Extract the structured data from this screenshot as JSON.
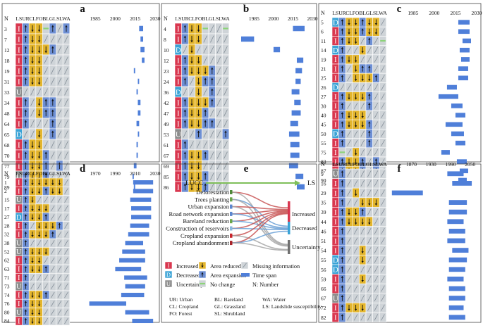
{
  "columns": [
    "LS",
    "UR",
    "CL",
    "FO",
    "BL",
    "GL",
    "SL",
    "WA"
  ],
  "legend_codes": {
    "I": "Increased",
    "D": "Decreased",
    "U": "Uncertainty",
    "R": "Area reduced",
    "E": "Area expansion",
    "N": "No change",
    "M": "Missing information",
    "T": "Time span",
    "num": "N: Number"
  },
  "abbreviations": [
    "UR: Urban",
    "BL: Bareland",
    "WA: Water",
    "CL: Cropland",
    "GL: Grassland",
    "LS: Landslide susceptibility",
    "FO: Forest",
    "SL: Shrubland"
  ],
  "colors": {
    "I": "#d9374f",
    "D": "#3aa3d6",
    "U": "#8c8c8c",
    "R": "#e3b52c",
    "E": "#6d8fd4",
    "M": "#cfd4d8",
    "N": "#8dd37a",
    "bar": "#4f7fd9"
  },
  "panels": [
    {
      "label": "a",
      "year_ticks": [
        1985,
        2000,
        2015,
        2030
      ],
      "time_range": [
        1970,
        2030
      ],
      "rows": [
        {
          "n": "3",
          "cells": "IERRNEME",
          "span": [
            2018,
            2021
          ]
        },
        {
          "n": "7",
          "cells": "IERRMMMM",
          "span": [
            2019,
            2021
          ]
        },
        {
          "n": "12",
          "cells": "IERRREMM",
          "span": [
            2019,
            2022
          ]
        },
        {
          "n": "18",
          "cells": "IERRMMMM",
          "span": [
            2020,
            2022
          ]
        },
        {
          "n": "19",
          "cells": "IERRMMMM",
          "span": [
            2014,
            2015
          ]
        },
        {
          "n": "31",
          "cells": "IERRMMMM",
          "span": [
            2017,
            2018
          ]
        },
        {
          "n": "33",
          "cells": "UMMMMMMM",
          "span": [
            2016,
            2017
          ]
        },
        {
          "n": "34",
          "cells": "IEMREEMM",
          "span": [
            2017,
            2019
          ]
        },
        {
          "n": "48",
          "cells": "IEMREEMM",
          "span": [
            2017,
            2019
          ]
        },
        {
          "n": "64",
          "cells": "IEMMMEMM",
          "span": [
            2016,
            2018
          ]
        },
        {
          "n": "65",
          "cells": "DMMRMEMM",
          "span": [
            2017,
            2018
          ]
        },
        {
          "n": "68",
          "cells": "IERRMMMM",
          "span": [
            2016,
            2017
          ]
        },
        {
          "n": "70",
          "cells": "IERREMMM",
          "span": [
            2016,
            2017
          ]
        },
        {
          "n": "77",
          "cells": "IERREMEM",
          "span": [
            2014,
            2016
          ]
        },
        {
          "n": "79",
          "cells": "UERREMMM",
          "span": [
            2013,
            2014
          ]
        },
        {
          "n": "89",
          "cells": "IERRMMMM",
          "span": [
            2014,
            2015
          ]
        }
      ]
    },
    {
      "label": "b",
      "year_ticks": [
        1985,
        2000,
        2015,
        2030
      ],
      "time_range": [
        1970,
        2030
      ],
      "rows": [
        {
          "n": "4",
          "cells": "IERRNMMN",
          "span": [
            2015,
            2024
          ]
        },
        {
          "n": "8",
          "cells": "IERRMMMM",
          "span": [
            1975,
            1985
          ]
        },
        {
          "n": "10",
          "cells": "DMRMMMMM",
          "span": [
            2000,
            2005
          ]
        },
        {
          "n": "12",
          "cells": "IERRMMMM",
          "span": [
            2018,
            2023
          ]
        },
        {
          "n": "23",
          "cells": "IERRREMM",
          "span": [
            2017,
            2022
          ]
        },
        {
          "n": "24",
          "cells": "IEMREEMM",
          "span": [
            2017,
            2021
          ]
        },
        {
          "n": "36",
          "cells": "DMMRMEMM",
          "span": [
            2014,
            2020
          ]
        },
        {
          "n": "42",
          "cells": "IERRREMM",
          "span": [
            2016,
            2021
          ]
        },
        {
          "n": "47",
          "cells": "IERREMMM",
          "span": [
            2014,
            2021
          ]
        },
        {
          "n": "49",
          "cells": "IERREEMM",
          "span": [
            2013,
            2019
          ]
        },
        {
          "n": "53",
          "cells": "UMMEMMME",
          "span": [
            2012,
            2020
          ]
        },
        {
          "n": "61",
          "cells": "IEMMMMMM",
          "span": [
            2013,
            2020
          ]
        },
        {
          "n": "67",
          "cells": "IERREMMM",
          "span": [
            2013,
            2020
          ]
        },
        {
          "n": "69",
          "cells": "IERRMMMM",
          "span": [
            2012,
            2019
          ]
        },
        {
          "n": "85",
          "cells": "IERREMMM",
          "span": [
            2017,
            2023
          ]
        },
        {
          "n": "86",
          "cells": "IERREMMM",
          "span": [
            2018,
            2024
          ]
        }
      ]
    },
    {
      "label": "c",
      "year_ticks": [
        1985,
        2000,
        2015,
        2030
      ],
      "time_range": [
        1970,
        2030
      ],
      "rows": [
        {
          "n": "5",
          "cells": "DERRERRM",
          "span": [
            2017,
            2025
          ]
        },
        {
          "n": "6",
          "cells": "IERRERRM",
          "span": [
            2017,
            2025
          ]
        },
        {
          "n": "11",
          "cells": "IERRMEMN",
          "span": [
            2020,
            2026
          ]
        },
        {
          "n": "14",
          "cells": "DEMMRMMM",
          "span": [
            2018,
            2025
          ]
        },
        {
          "n": "19",
          "cells": "IERRMMMM",
          "span": [
            2019,
            2025
          ]
        },
        {
          "n": "21",
          "cells": "IEMREEMM",
          "span": [
            2017,
            2024
          ]
        },
        {
          "n": "25",
          "cells": "IEMRRREM",
          "span": [
            2017,
            2024
          ]
        },
        {
          "n": "26",
          "cells": "DMMMMMMM",
          "span": [
            2009,
            2016
          ]
        },
        {
          "n": "27",
          "cells": "IERRREMM",
          "span": [
            2003,
            2017
          ]
        },
        {
          "n": "30",
          "cells": "IEMMMEMM",
          "span": [
            2012,
            2020
          ]
        },
        {
          "n": "40",
          "cells": "IERRRMMM",
          "span": [
            2015,
            2022
          ]
        },
        {
          "n": "45",
          "cells": "IERRREMM",
          "span": [
            2008,
            2020
          ]
        },
        {
          "n": "50",
          "cells": "DEMMMEMM",
          "span": [
            2012,
            2021
          ]
        },
        {
          "n": "55",
          "cells": "IEMMMEMM",
          "span": [
            2015,
            2022
          ]
        },
        {
          "n": "75",
          "cells": "INMRMMMM",
          "span": [
            2005,
            2011
          ]
        },
        {
          "n": "83",
          "cells": "IERREMEM",
          "span": [
            2016,
            2023
          ]
        },
        {
          "n": "87",
          "cells": "IERREMEM",
          "span": [
            2018,
            2024
          ]
        },
        {
          "n": "90",
          "cells": "UERREMER",
          "span": [
            2017,
            2023
          ]
        }
      ]
    },
    {
      "label": "d",
      "year_ticks": [
        1970,
        1990,
        2010,
        2030
      ],
      "time_range": [
        1950,
        2030
      ],
      "rows": [
        {
          "n": "1",
          "cells": "IERRRRRM",
          "span": [
            2008,
            2028
          ]
        },
        {
          "n": "2",
          "cells": "IERRERRM",
          "span": [
            2008,
            2028
          ]
        },
        {
          "n": "15",
          "cells": "UERMMMMM",
          "span": [
            2005,
            2026
          ]
        },
        {
          "n": "17",
          "cells": "IERRRMMM",
          "span": [
            2006,
            2026
          ]
        },
        {
          "n": "27",
          "cells": "DERREMMM",
          "span": [
            2006,
            2026
          ]
        },
        {
          "n": "28",
          "cells": "IEMRRREM",
          "span": [
            2005,
            2024
          ]
        },
        {
          "n": "32",
          "cells": "IERRREMM",
          "span": [
            2003,
            2024
          ]
        },
        {
          "n": "38",
          "cells": "UEMMMMMM",
          "span": [
            2000,
            2018
          ]
        },
        {
          "n": "52",
          "cells": "UERRRMMM",
          "span": [
            1997,
            2020
          ]
        },
        {
          "n": "62",
          "cells": "IERRMMMM",
          "span": [
            1994,
            2020
          ]
        },
        {
          "n": "63",
          "cells": "IERREMMM",
          "span": [
            1990,
            2016
          ]
        },
        {
          "n": "71",
          "cells": "IEMMMMMM",
          "span": [
            1999,
            2022
          ]
        },
        {
          "n": "73",
          "cells": "UEMMMMMM",
          "span": [
            2000,
            2020
          ]
        },
        {
          "n": "74",
          "cells": "IERREMMM",
          "span": [
            1996,
            2019
          ]
        },
        {
          "n": "76",
          "cells": "IERRMMMM",
          "span": [
            1964,
            2001
          ]
        },
        {
          "n": "80",
          "cells": "UERRMMMM",
          "span": [
            2000,
            2024
          ]
        },
        {
          "n": "84",
          "cells": "IERRMMMM",
          "span": [
            2007,
            2028
          ]
        }
      ]
    },
    {
      "label": "f",
      "year_ticks": [
        1870,
        1930,
        1990,
        2050
      ],
      "time_range": [
        1810,
        2070
      ],
      "rows": [
        {
          "n": "9",
          "cells": "UEMMMMMM",
          "span": [
            1980,
            2030
          ]
        },
        {
          "n": "16",
          "cells": "IEMMMMMM",
          "span": [
            1995,
            2055
          ]
        },
        {
          "n": "29",
          "cells": "IEMRMMMM",
          "span": [
            1810,
            1905
          ]
        },
        {
          "n": "35",
          "cells": "IEMMRRRM",
          "span": [
            1985,
            2040
          ]
        },
        {
          "n": "39",
          "cells": "IERREMMM",
          "span": [
            1985,
            2040
          ]
        },
        {
          "n": "44",
          "cells": "IERRRRMM",
          "span": [
            1980,
            2030
          ]
        },
        {
          "n": "46",
          "cells": "IEMMMMMM",
          "span": [
            1985,
            2035
          ]
        },
        {
          "n": "51",
          "cells": "IEMMMMMM",
          "span": [
            1980,
            2035
          ]
        },
        {
          "n": "54",
          "cells": "IEMMRMMM",
          "span": [
            1995,
            2045
          ]
        },
        {
          "n": "55",
          "cells": "DEMMRMMM",
          "span": [
            1985,
            2040
          ]
        },
        {
          "n": "56",
          "cells": "DEMMMMMM",
          "span": [
            1985,
            2035
          ]
        },
        {
          "n": "59",
          "cells": "IEMMRMMM",
          "span": [
            1980,
            2030
          ]
        },
        {
          "n": "66",
          "cells": "IEMMMMMM",
          "span": [
            1985,
            2035
          ]
        },
        {
          "n": "67",
          "cells": "UEMMMMMM",
          "span": [
            1985,
            2035
          ]
        },
        {
          "n": "72",
          "cells": "IERRRMMM",
          "span": [
            1985,
            2030
          ]
        },
        {
          "n": "82",
          "cells": "IEMMMMMM",
          "span": [
            1985,
            2035
          ]
        }
      ]
    }
  ],
  "sankey": {
    "label": "e",
    "left_title": "LUCC",
    "right_title": "LS",
    "left_items": [
      "Deforestation",
      "Trees planting",
      "Urban expansion",
      "Road network expansion",
      "Bareland reduction",
      "Construction of reservoirs",
      "Cropland expansion",
      "Cropland abandonment"
    ],
    "right_items": [
      "Increased",
      "Decreased",
      "Uncertainty"
    ],
    "left_colors": [
      "#4f8a3a",
      "#6aa54a",
      "#5b87cf",
      "#5b87cf",
      "#6aa54a",
      "#8ab8dd",
      "#c8242b",
      "#a9232a"
    ],
    "right_colors": [
      "#d9374f",
      "#3aa3d6",
      "#707070"
    ],
    "links": [
      [
        0,
        0,
        "#c85454"
      ],
      [
        0,
        2,
        "#a7a7a7"
      ],
      [
        1,
        1,
        "#6aa0d6"
      ],
      [
        1,
        2,
        "#a7a7a7"
      ],
      [
        2,
        0,
        "#c85454"
      ],
      [
        2,
        2,
        "#a7a7a7"
      ],
      [
        3,
        0,
        "#c85454"
      ],
      [
        3,
        1,
        "#6aa0d6"
      ],
      [
        4,
        0,
        "#c85454"
      ],
      [
        4,
        1,
        "#6aa0d6"
      ],
      [
        5,
        0,
        "#c85454"
      ],
      [
        5,
        1,
        "#6aa0d6"
      ],
      [
        6,
        0,
        "#c85454"
      ],
      [
        6,
        2,
        "#a7a7a7"
      ],
      [
        7,
        0,
        "#c85454"
      ],
      [
        7,
        1,
        "#6aa0d6"
      ],
      [
        7,
        2,
        "#a7a7a7"
      ]
    ]
  }
}
